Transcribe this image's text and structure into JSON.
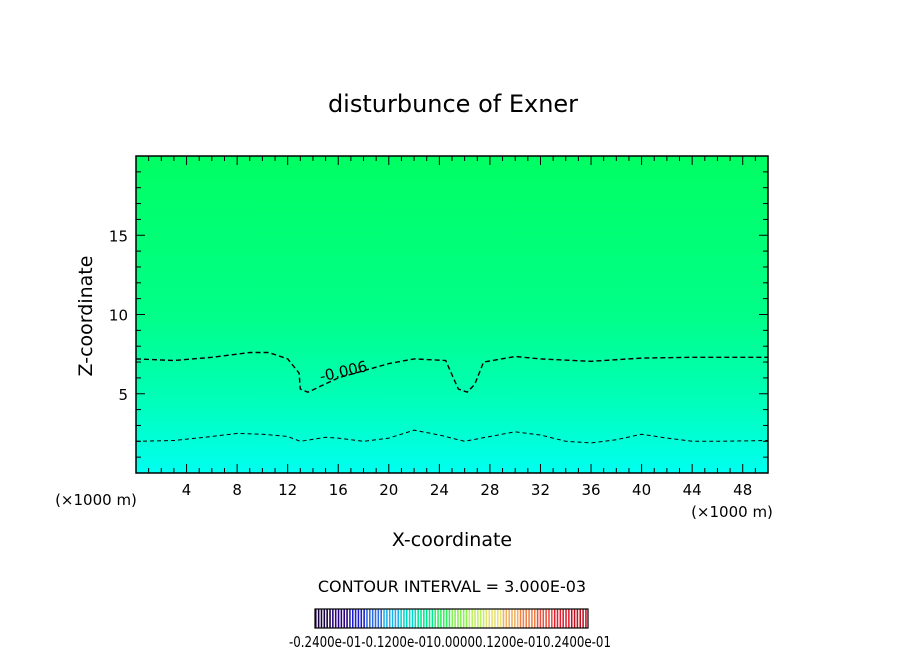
{
  "chart_data": {
    "type": "heatmap",
    "title": "disturbunce of Exner",
    "xlabel": "X-coordinate",
    "ylabel": "Z-coordinate",
    "x_unit": "(×1000 m)",
    "y_unit": "(×1000 m)",
    "xlim": [
      0,
      50
    ],
    "ylim": [
      0,
      20
    ],
    "x_ticks": [
      4,
      8,
      12,
      16,
      20,
      24,
      28,
      32,
      36,
      40,
      44,
      48
    ],
    "y_ticks": [
      5,
      10,
      15
    ],
    "grid": false,
    "field": {
      "gradient_stops": [
        {
          "z": 0,
          "color": "#00fff0"
        },
        {
          "z": 5,
          "color": "#00ffb4"
        },
        {
          "z": 10,
          "color": "#00ff88"
        },
        {
          "z": 20,
          "color": "#00ff62"
        }
      ]
    },
    "contours": [
      {
        "level": -0.006,
        "label": "-0.006",
        "style": "dashed",
        "points": [
          [
            0,
            7.2
          ],
          [
            3,
            7.1
          ],
          [
            6,
            7.3
          ],
          [
            9,
            7.6
          ],
          [
            10.5,
            7.6
          ],
          [
            12,
            7.2
          ],
          [
            12.9,
            6.3
          ],
          [
            13,
            5.3
          ],
          [
            13.6,
            5.1
          ],
          [
            16,
            6.0
          ],
          [
            20,
            6.9
          ],
          [
            22,
            7.2
          ],
          [
            24.5,
            7.1
          ],
          [
            25.5,
            5.3
          ],
          [
            26.2,
            5.1
          ],
          [
            26.8,
            5.6
          ],
          [
            27.5,
            7.0
          ],
          [
            30,
            7.35
          ],
          [
            32,
            7.2
          ],
          [
            36,
            7.05
          ],
          [
            40,
            7.25
          ],
          [
            44,
            7.3
          ],
          [
            48,
            7.3
          ],
          [
            50,
            7.3
          ]
        ]
      },
      {
        "level": -0.009,
        "style": "dashed",
        "points": [
          [
            0,
            2.0
          ],
          [
            3,
            2.05
          ],
          [
            6,
            2.3
          ],
          [
            8,
            2.5
          ],
          [
            10,
            2.45
          ],
          [
            12,
            2.3
          ],
          [
            13,
            2.0
          ],
          [
            15,
            2.25
          ],
          [
            16,
            2.2
          ],
          [
            18,
            2.0
          ],
          [
            20,
            2.2
          ],
          [
            22,
            2.7
          ],
          [
            24,
            2.4
          ],
          [
            26,
            2.0
          ],
          [
            28,
            2.3
          ],
          [
            30,
            2.6
          ],
          [
            32,
            2.4
          ],
          [
            34,
            2.0
          ],
          [
            36,
            1.9
          ],
          [
            38,
            2.1
          ],
          [
            40,
            2.45
          ],
          [
            42,
            2.2
          ],
          [
            44,
            2.0
          ],
          [
            46,
            2.0
          ],
          [
            50,
            2.05
          ]
        ]
      }
    ],
    "contour_interval_label": "CONTOUR INTERVAL = 3.000E-03",
    "colorbar": {
      "colors": [
        "#1a0040",
        "#2a0080",
        "#1c1cc8",
        "#2c6ae0",
        "#20b0e8",
        "#00d8c8",
        "#00e890",
        "#30f060",
        "#88f050",
        "#c0f060",
        "#e8e070",
        "#f0b060",
        "#f08048",
        "#e85040",
        "#e02030",
        "#c01020"
      ],
      "labels": [
        "-0.2400E-01",
        "-0.1200E-01",
        "0.000",
        "0.1200E-01",
        "0.2400E-01"
      ],
      "label_text": "-0.2400e-01-0.1200e-010.00000.1200e-010.2400e-01"
    }
  }
}
